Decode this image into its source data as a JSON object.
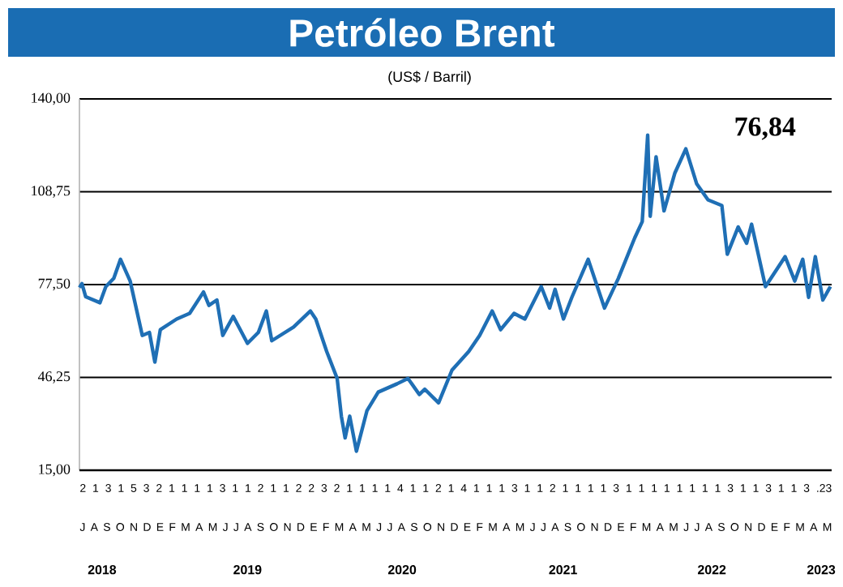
{
  "chart_data": {
    "type": "line",
    "title": "Petróleo Brent",
    "subtitle": "(US$ / Barril)",
    "x": [
      "2018-07-01",
      "2018-07-07",
      "2018-07-16",
      "2018-08-19",
      "2018-09-02",
      "2018-09-21",
      "2018-10-07",
      "2018-10-30",
      "2018-11-28",
      "2018-12-15",
      "2018-12-28",
      "2019-01-10",
      "2019-02-18",
      "2019-03-21",
      "2019-04-23",
      "2019-05-06",
      "2019-05-25",
      "2019-06-08",
      "2019-07-03",
      "2019-08-06",
      "2019-09-01",
      "2019-09-20",
      "2019-10-03",
      "2019-11-24",
      "2020-01-03",
      "2020-01-16",
      "2020-02-11",
      "2020-03-07",
      "2020-03-17",
      "2020-03-26",
      "2020-04-06",
      "2020-04-22",
      "2020-05-17",
      "2020-06-13",
      "2020-07-28",
      "2020-08-23",
      "2020-09-19",
      "2020-10-02",
      "2020-11-04",
      "2020-12-06",
      "2021-01-15",
      "2021-02-10",
      "2021-03-12",
      "2021-04-01",
      "2021-05-03",
      "2021-05-29",
      "2021-07-07",
      "2021-07-27",
      "2021-08-09",
      "2021-08-29",
      "2021-09-18",
      "2021-10-27",
      "2021-12-05",
      "2022-01-07",
      "2022-02-15",
      "2022-03-05",
      "2022-03-18",
      "2022-03-24",
      "2022-04-07",
      "2022-04-26",
      "2022-05-22",
      "2022-06-17",
      "2022-07-13",
      "2022-08-09",
      "2022-09-11",
      "2022-09-24",
      "2022-10-20",
      "2022-11-09",
      "2022-11-21",
      "2022-12-24",
      "2023-02-09",
      "2023-03-04",
      "2023-03-23",
      "2023-04-06",
      "2023-04-22",
      "2023-05-10",
      "2023-05-28"
    ],
    "series": [
      {
        "color": "#1f6fb5",
        "values": [
          76.5,
          77.8,
          73.4,
          71.4,
          76.8,
          79.6,
          86.0,
          78.7,
          60.4,
          61.4,
          51.4,
          62.3,
          65.9,
          67.8,
          75.0,
          70.5,
          72.3,
          60.4,
          66.8,
          57.7,
          61.4,
          68.6,
          58.6,
          63.2,
          68.6,
          65.9,
          55.0,
          45.9,
          33.2,
          25.9,
          33.2,
          21.4,
          35.0,
          41.3,
          44.1,
          45.9,
          40.5,
          42.3,
          37.7,
          48.7,
          55.0,
          60.4,
          68.6,
          62.3,
          67.8,
          65.9,
          76.8,
          69.6,
          75.9,
          65.9,
          73.2,
          86.0,
          69.6,
          79.6,
          93.2,
          98.7,
          127.8,
          100.5,
          120.5,
          102.3,
          115.1,
          123.2,
          111.4,
          106.0,
          104.1,
          87.7,
          96.9,
          91.4,
          97.8,
          76.8,
          86.9,
          78.7,
          86.0,
          73.2,
          86.9,
          72.3,
          76.84
        ]
      }
    ],
    "xlim": [
      "2018-07-01",
      "2023-05-31"
    ],
    "ylim": [
      15,
      140
    ],
    "yticks": [
      {
        "value": 15,
        "label": "15,00"
      },
      {
        "value": 46.25,
        "label": "46,25"
      },
      {
        "value": 77.5,
        "label": "77,50"
      },
      {
        "value": 108.75,
        "label": "108,75"
      },
      {
        "value": 140,
        "label": "140,00"
      }
    ],
    "xticks": [
      {
        "value": "2018-08-24",
        "label": "2018"
      },
      {
        "value": "2019-08-06",
        "label": "2019"
      },
      {
        "value": "2020-08-09",
        "label": "2020"
      },
      {
        "value": "2021-08-28",
        "label": "2021"
      },
      {
        "value": "2022-08-18",
        "label": "2022"
      },
      {
        "value": "2023-05-06",
        "label": "2023"
      }
    ],
    "grid": "y",
    "annotations": [
      "76,84",
      "2 1 3 1 5 3 2 1 1 1 1 3 1 1 2 1 1 2 2 3 2 1 1 1 1 4 1 1 2 1 4 1 1 1 3 1 1 2 1 1 1 1 3 1 1 1 1 1 1 1 1 3 1 1 3 1 1 3 .23",
      "J A S O N D E F M A M J J A S O N D E F M A M J J A S O N D E F M A M J J A S O N D E F M A M J J A S O N D E F M A M"
    ]
  }
}
